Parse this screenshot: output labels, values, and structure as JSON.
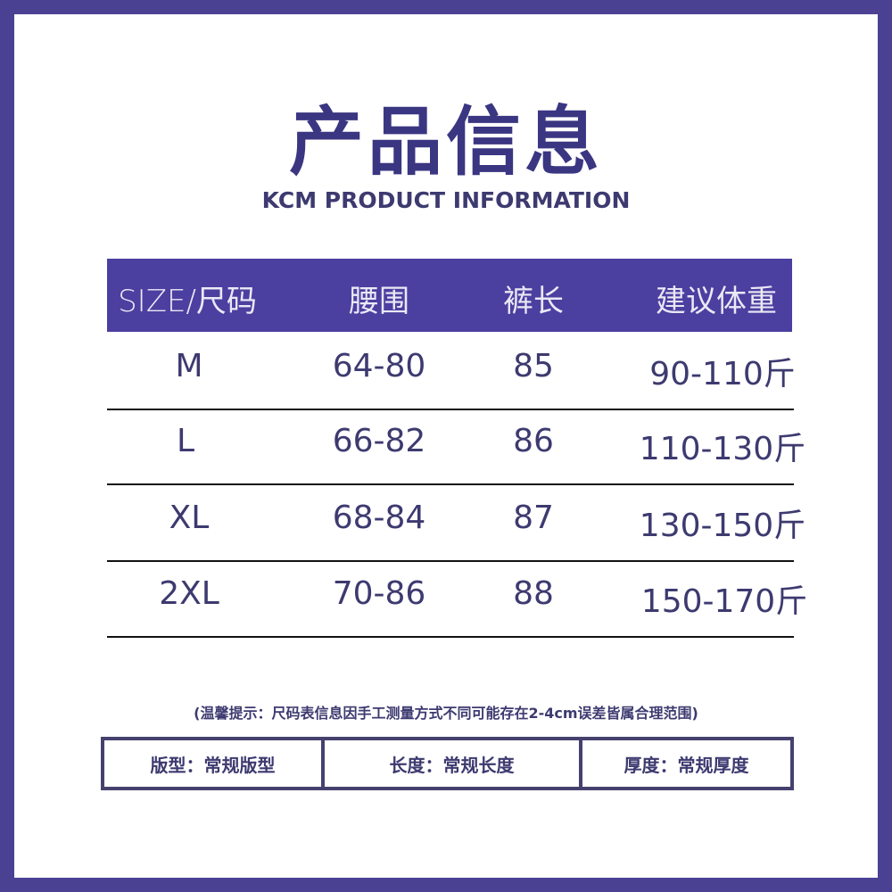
{
  "title": "产品信息",
  "subtitle": "KCM PRODUCT INFORMATION",
  "colors": {
    "frame": "#4a4193",
    "header_bg": "#4b3fa0",
    "text": "#3d3a70"
  },
  "table": {
    "headers": [
      "SIZE/尺码",
      "腰围",
      "裤长",
      "建议体重"
    ],
    "rows": [
      [
        "M",
        "64-80",
        "85",
        "90-110斤"
      ],
      [
        "L",
        "66-82",
        "86",
        "110-130斤"
      ],
      [
        "XL",
        "68-84",
        "87",
        "130-150斤"
      ],
      [
        "2XL",
        "70-86",
        "88",
        "150-170斤"
      ]
    ]
  },
  "note": "(温馨提示：尺码表信息因手工测量方式不同可能存在2-4cm误差皆属合理范围)",
  "attributes": [
    "版型：常规版型",
    "长度：常规长度",
    "厚度：常规厚度"
  ]
}
